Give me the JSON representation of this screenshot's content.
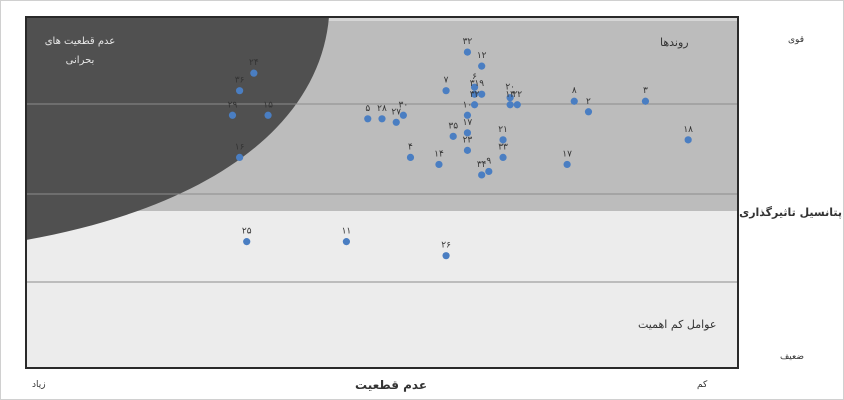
{
  "axes": {
    "y_top": "قوی",
    "y_label": "پتانسیل تاثیرگذاری",
    "y_bottom": "ضعیف",
    "x_left": "زیاد",
    "x_label": "عدم قطعیت",
    "x_right": "کم"
  },
  "zones": {
    "critical_line1": "عدم قطعیت های",
    "critical_line2": "بحرانی",
    "trends": "روندها",
    "low_importance": "عوامل کم اهمیت"
  },
  "colors": {
    "critical": "#505050",
    "trend_band": "#bcbcbc",
    "trend_light": "#d6d6d6",
    "low_band": "#ececec",
    "point": "#4a7ec2",
    "grid": "#8c8c8c"
  },
  "chart_data": {
    "type": "scatter",
    "xlim": [
      0,
      100
    ],
    "ylim": [
      0,
      100
    ],
    "x_direction": "left = high uncertainty, right = low uncertainty",
    "grid": true,
    "points": [
      {
        "label": "۳۲",
        "x": 62,
        "y": 90
      },
      {
        "label": "۱۲",
        "x": 64,
        "y": 86
      },
      {
        "label": "۲۴",
        "x": 32,
        "y": 84
      },
      {
        "label": "۳۶",
        "x": 30,
        "y": 79
      },
      {
        "label": "۷",
        "x": 59,
        "y": 79
      },
      {
        "label": "۶",
        "x": 63,
        "y": 80
      },
      {
        "label": "۳۱",
        "x": 63,
        "y": 78
      },
      {
        "label": "۹",
        "x": 64,
        "y": 78
      },
      {
        "label": "۳۲",
        "x": 63,
        "y": 75
      },
      {
        "label": "۲۰",
        "x": 68,
        "y": 77
      },
      {
        "label": "۲۲",
        "x": 69,
        "y": 75
      },
      {
        "label": "۱۳",
        "x": 68,
        "y": 75
      },
      {
        "label": "۸",
        "x": 77,
        "y": 76
      },
      {
        "label": "۲",
        "x": 79,
        "y": 73
      },
      {
        "label": "۳",
        "x": 87,
        "y": 76
      },
      {
        "label": "۲۹",
        "x": 29,
        "y": 72
      },
      {
        "label": "۱۵",
        "x": 34,
        "y": 72
      },
      {
        "label": "۵",
        "x": 48,
        "y": 71
      },
      {
        "label": "۲۸",
        "x": 50,
        "y": 71
      },
      {
        "label": "۳۰",
        "x": 53,
        "y": 72
      },
      {
        "label": "۲۷",
        "x": 52,
        "y": 70
      },
      {
        "label": "۱۰",
        "x": 62,
        "y": 72
      },
      {
        "label": "۳۵",
        "x": 60,
        "y": 66
      },
      {
        "label": "۱۷",
        "x": 62,
        "y": 67
      },
      {
        "label": "۲۱",
        "x": 67,
        "y": 65
      },
      {
        "label": "۱۸",
        "x": 93,
        "y": 65
      },
      {
        "label": "۱۶",
        "x": 30,
        "y": 60
      },
      {
        "label": "۴",
        "x": 54,
        "y": 60
      },
      {
        "label": "۱۴",
        "x": 58,
        "y": 58
      },
      {
        "label": "۳۴",
        "x": 64,
        "y": 55
      },
      {
        "label": "۹",
        "x": 65,
        "y": 56
      },
      {
        "label": "۳۳",
        "x": 67,
        "y": 60
      },
      {
        "label": "۲۳",
        "x": 62,
        "y": 62
      },
      {
        "label": "۱۷",
        "x": 76,
        "y": 58
      },
      {
        "label": "۲۵",
        "x": 31,
        "y": 36
      },
      {
        "label": "۱۱",
        "x": 45,
        "y": 36
      },
      {
        "label": "۲۶",
        "x": 59,
        "y": 32
      }
    ]
  }
}
